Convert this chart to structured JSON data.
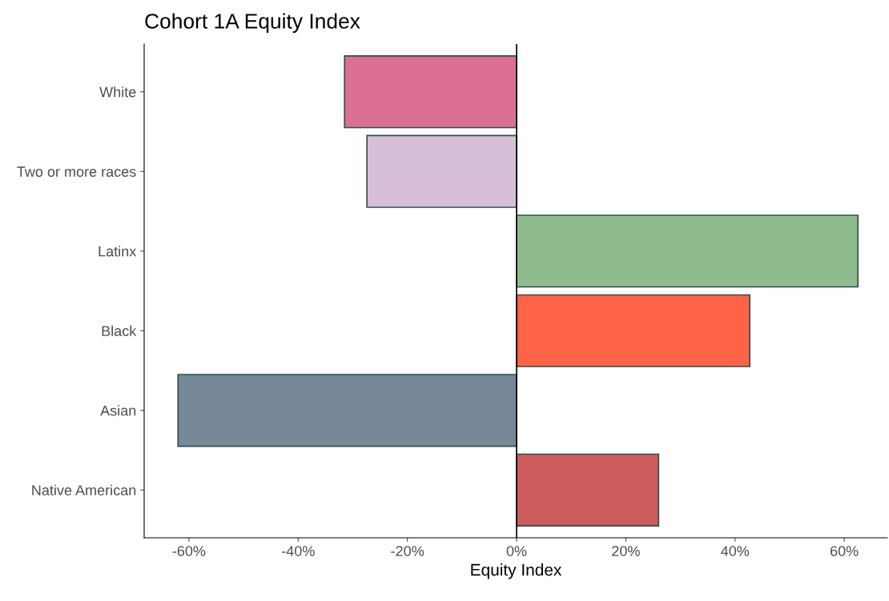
{
  "chart_data": {
    "type": "bar",
    "orientation": "horizontal",
    "title": "Cohort 1A Equity Index",
    "xlabel": "Equity Index",
    "categories": [
      "White",
      "Two or more races",
      "Latinx",
      "Black",
      "Asian",
      "Native American"
    ],
    "values": [
      -31.5,
      -27.4,
      62.5,
      42.7,
      -62.0,
      26.0
    ],
    "colors": [
      "#db7093",
      "#d8bfd8",
      "#8fbc8f",
      "#ff6347",
      "#778899",
      "#cd5c5c"
    ],
    "xlim": [
      -68.2,
      67.9
    ],
    "xticks": [
      {
        "value": -60,
        "label": "-60%"
      },
      {
        "value": -40,
        "label": "-40%"
      },
      {
        "value": -20,
        "label": "-20%"
      },
      {
        "value": 0,
        "label": "0%"
      },
      {
        "value": 20,
        "label": "20%"
      },
      {
        "value": 40,
        "label": "40%"
      },
      {
        "value": 60,
        "label": "60%"
      }
    ],
    "ref_lines": [
      {
        "axis": "x",
        "value": 0,
        "color": "#000000"
      }
    ],
    "grid": false,
    "legend": false
  }
}
